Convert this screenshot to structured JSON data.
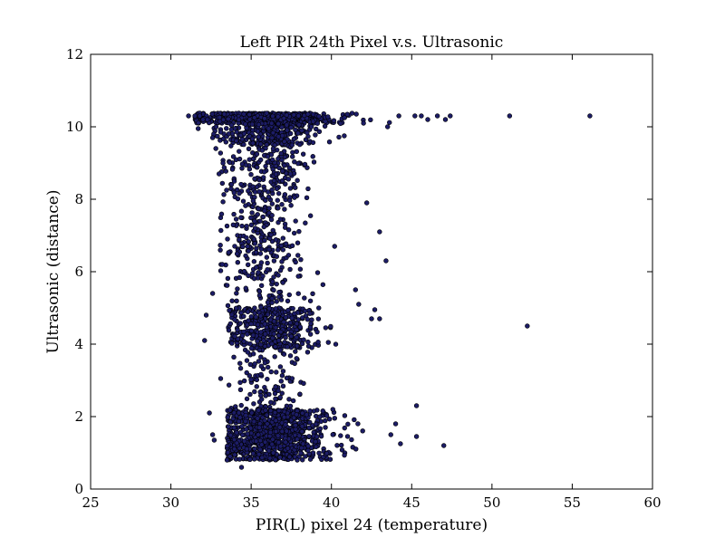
{
  "chart_data": {
    "type": "scatter",
    "title": "Left PIR 24th Pixel v.s. Ultrasonic",
    "xlabel": "PIR(L) pixel 24 (temperature)",
    "ylabel": "Ultrasonic (distance)",
    "xlim": [
      25,
      60
    ],
    "ylim": [
      0,
      12
    ],
    "xticks": [
      25,
      30,
      35,
      40,
      45,
      50,
      55,
      60
    ],
    "yticks": [
      0,
      2,
      4,
      6,
      8,
      10,
      12
    ],
    "grid": false,
    "legend": "none",
    "marker_color": "#1c1c66",
    "marker_edge": "#000000",
    "series": [
      {
        "points": [
          [
            31.1,
            10.3
          ],
          [
            31.5,
            10.3
          ],
          [
            31.8,
            10.3
          ],
          [
            32.0,
            10.2
          ],
          [
            31.7,
            9.95
          ],
          [
            45.2,
            10.3
          ],
          [
            45.6,
            10.3
          ],
          [
            46.0,
            10.2
          ],
          [
            46.6,
            10.3
          ],
          [
            47.1,
            10.2
          ],
          [
            47.4,
            10.3
          ],
          [
            42.0,
            10.1
          ],
          [
            43.5,
            10.0
          ],
          [
            44.2,
            10.3
          ],
          [
            40.8,
            9.75
          ],
          [
            51.1,
            10.3
          ],
          [
            56.1,
            10.3
          ],
          [
            42.2,
            7.9
          ],
          [
            43.0,
            7.1
          ],
          [
            43.4,
            6.3
          ],
          [
            40.2,
            6.7
          ],
          [
            41.5,
            5.5
          ],
          [
            41.7,
            5.1
          ],
          [
            42.5,
            4.7
          ],
          [
            42.7,
            4.95
          ],
          [
            43.0,
            4.7
          ],
          [
            52.2,
            4.5
          ],
          [
            45.3,
            2.3
          ],
          [
            45.3,
            1.45
          ],
          [
            47.0,
            1.2
          ],
          [
            44.3,
            1.25
          ],
          [
            44.0,
            1.8
          ],
          [
            43.7,
            1.5
          ],
          [
            32.1,
            4.1
          ],
          [
            32.2,
            4.8
          ],
          [
            32.4,
            2.1
          ],
          [
            32.6,
            1.5
          ],
          [
            32.7,
            1.35
          ],
          [
            33.1,
            3.05
          ],
          [
            33.5,
            0.8
          ],
          [
            34.4,
            0.6
          ],
          [
            33.2,
            6.2
          ],
          [
            32.6,
            5.4
          ],
          [
            33.0,
            8.7
          ],
          [
            32.8,
            9.4
          ]
        ]
      }
    ],
    "clusters": [
      {
        "xmin": 31.5,
        "xmax": 44.0,
        "ymin": 10.1,
        "ymax": 10.38,
        "count": 650,
        "xcenter": 36.0,
        "xspread": 2.0
      },
      {
        "xmin": 32.5,
        "xmax": 41.0,
        "ymin": 9.5,
        "ymax": 10.1,
        "count": 260,
        "xcenter": 36.0,
        "xspread": 1.6
      },
      {
        "xmin": 33.0,
        "xmax": 40.5,
        "ymin": 8.3,
        "ymax": 9.5,
        "count": 160,
        "xcenter": 35.8,
        "xspread": 1.4
      },
      {
        "xmin": 33.0,
        "xmax": 40.5,
        "ymin": 6.5,
        "ymax": 8.3,
        "count": 200,
        "xcenter": 35.6,
        "xspread": 1.3
      },
      {
        "xmin": 33.0,
        "xmax": 41.0,
        "ymin": 5.0,
        "ymax": 6.5,
        "count": 110,
        "xcenter": 35.8,
        "xspread": 1.4
      },
      {
        "xmin": 33.5,
        "xmax": 41.5,
        "ymin": 3.9,
        "ymax": 5.0,
        "count": 380,
        "xcenter": 36.2,
        "xspread": 1.5
      },
      {
        "xmin": 33.5,
        "xmax": 40.0,
        "ymin": 2.2,
        "ymax": 3.9,
        "count": 110,
        "xcenter": 35.8,
        "xspread": 1.2
      },
      {
        "xmin": 33.5,
        "xmax": 43.0,
        "ymin": 0.8,
        "ymax": 2.2,
        "count": 900,
        "xcenter": 36.3,
        "xspread": 1.8
      }
    ]
  }
}
